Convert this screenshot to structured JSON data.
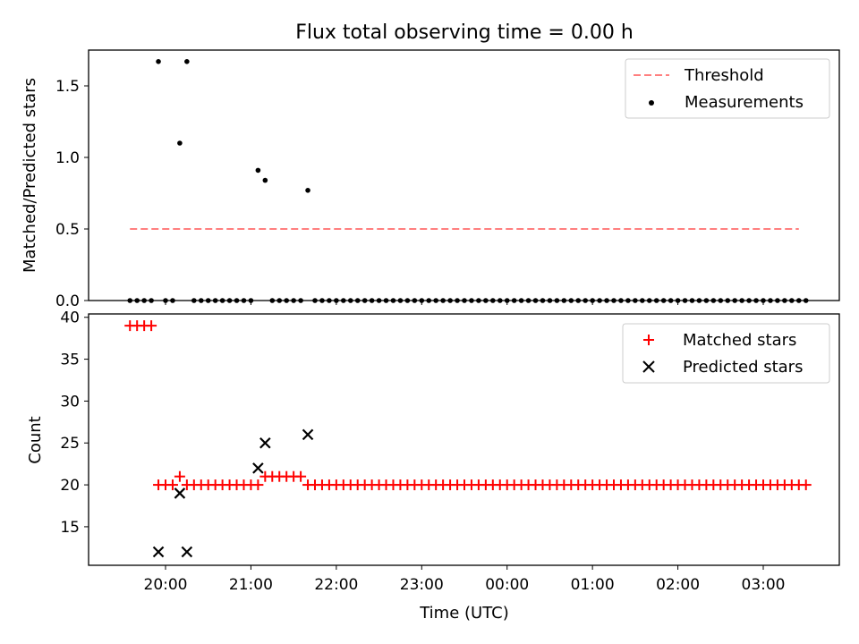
{
  "figure": {
    "title": "Flux total observing time = 0.00 h"
  },
  "chart_data": [
    {
      "type": "scatter",
      "panel": "top",
      "title": "Flux total observing time = 0.00 h",
      "xlabel": "",
      "ylabel": "Matched/Predicted stars",
      "ylim": [
        0.0,
        1.75
      ],
      "y_ticks": [
        0.0,
        0.5,
        1.0,
        1.5
      ],
      "y_tick_labels": [
        "0.0",
        "0.5",
        "1.0",
        "1.5"
      ],
      "x_ticks": [
        "20:00",
        "21:00",
        "22:00",
        "23:00",
        "00:00",
        "01:00",
        "02:00",
        "03:00"
      ],
      "x_tick_labels_visible": false,
      "legend": {
        "placement": "top-right",
        "entries": [
          "Threshold",
          "Measurements"
        ]
      },
      "threshold": {
        "name": "Threshold",
        "value": 0.5,
        "x_start": "19:35",
        "x_end": "03:25",
        "color": "#ff7f7f",
        "style": "dashed"
      },
      "series": [
        {
          "name": "Measurements",
          "color": "#000000",
          "marker": "dot",
          "points": [
            [
              "19:35",
              0.0
            ],
            [
              "19:40",
              0.0
            ],
            [
              "19:45",
              0.0
            ],
            [
              "19:50",
              0.0
            ],
            [
              "19:55",
              1.67
            ],
            [
              "20:00",
              0.0
            ],
            [
              "20:05",
              0.0
            ],
            [
              "20:10",
              1.1
            ],
            [
              "20:15",
              1.67
            ],
            [
              "20:20",
              0.0
            ],
            [
              "20:25",
              0.0
            ],
            [
              "20:30",
              0.0
            ],
            [
              "20:35",
              0.0
            ],
            [
              "20:40",
              0.0
            ],
            [
              "20:45",
              0.0
            ],
            [
              "20:50",
              0.0
            ],
            [
              "20:55",
              0.0
            ],
            [
              "21:00",
              0.0
            ],
            [
              "21:05",
              0.91
            ],
            [
              "21:10",
              0.84
            ],
            [
              "21:15",
              0.0
            ],
            [
              "21:20",
              0.0
            ],
            [
              "21:25",
              0.0
            ],
            [
              "21:30",
              0.0
            ],
            [
              "21:35",
              0.0
            ],
            [
              "21:40",
              0.77
            ],
            [
              "21:45",
              0.0
            ],
            [
              "21:50",
              0.0
            ],
            [
              "21:55",
              0.0
            ],
            [
              "22:00",
              0.0
            ],
            [
              "22:05",
              0.0
            ],
            [
              "22:10",
              0.0
            ],
            [
              "22:15",
              0.0
            ],
            [
              "22:20",
              0.0
            ],
            [
              "22:25",
              0.0
            ],
            [
              "22:30",
              0.0
            ],
            [
              "22:35",
              0.0
            ],
            [
              "22:40",
              0.0
            ],
            [
              "22:45",
              0.0
            ],
            [
              "22:50",
              0.0
            ],
            [
              "22:55",
              0.0
            ],
            [
              "23:00",
              0.0
            ],
            [
              "23:05",
              0.0
            ],
            [
              "23:10",
              0.0
            ],
            [
              "23:15",
              0.0
            ],
            [
              "23:20",
              0.0
            ],
            [
              "23:25",
              0.0
            ],
            [
              "23:30",
              0.0
            ],
            [
              "23:35",
              0.0
            ],
            [
              "23:40",
              0.0
            ],
            [
              "23:45",
              0.0
            ],
            [
              "23:50",
              0.0
            ],
            [
              "23:55",
              0.0
            ],
            [
              "00:00",
              0.0
            ],
            [
              "00:05",
              0.0
            ],
            [
              "00:10",
              0.0
            ],
            [
              "00:15",
              0.0
            ],
            [
              "00:20",
              0.0
            ],
            [
              "00:25",
              0.0
            ],
            [
              "00:30",
              0.0
            ],
            [
              "00:35",
              0.0
            ],
            [
              "00:40",
              0.0
            ],
            [
              "00:45",
              0.0
            ],
            [
              "00:50",
              0.0
            ],
            [
              "00:55",
              0.0
            ],
            [
              "01:00",
              0.0
            ],
            [
              "01:05",
              0.0
            ],
            [
              "01:10",
              0.0
            ],
            [
              "01:15",
              0.0
            ],
            [
              "01:20",
              0.0
            ],
            [
              "01:25",
              0.0
            ],
            [
              "01:30",
              0.0
            ],
            [
              "01:35",
              0.0
            ],
            [
              "01:40",
              0.0
            ],
            [
              "01:45",
              0.0
            ],
            [
              "01:50",
              0.0
            ],
            [
              "01:55",
              0.0
            ],
            [
              "02:00",
              0.0
            ],
            [
              "02:05",
              0.0
            ],
            [
              "02:10",
              0.0
            ],
            [
              "02:15",
              0.0
            ],
            [
              "02:20",
              0.0
            ],
            [
              "02:25",
              0.0
            ],
            [
              "02:30",
              0.0
            ],
            [
              "02:35",
              0.0
            ],
            [
              "02:40",
              0.0
            ],
            [
              "02:45",
              0.0
            ],
            [
              "02:50",
              0.0
            ],
            [
              "02:55",
              0.0
            ],
            [
              "03:00",
              0.0
            ],
            [
              "03:05",
              0.0
            ],
            [
              "03:10",
              0.0
            ],
            [
              "03:15",
              0.0
            ],
            [
              "03:20",
              0.0
            ],
            [
              "03:25",
              0.0
            ],
            [
              "03:30",
              0.0
            ]
          ]
        }
      ]
    },
    {
      "type": "scatter",
      "panel": "bottom",
      "title": "",
      "xlabel": "Time (UTC)",
      "ylabel": "Count",
      "ylim": [
        10.4,
        40.4
      ],
      "y_ticks": [
        15,
        20,
        25,
        30,
        35,
        40
      ],
      "y_tick_labels": [
        "15",
        "20",
        "25",
        "30",
        "35",
        "40"
      ],
      "x_ticks": [
        "20:00",
        "21:00",
        "22:00",
        "23:00",
        "00:00",
        "01:00",
        "02:00",
        "03:00"
      ],
      "x_tick_labels": [
        "20:00",
        "21:00",
        "22:00",
        "23:00",
        "00:00",
        "01:00",
        "02:00",
        "03:00"
      ],
      "legend": {
        "placement": "top-right",
        "entries": [
          "Matched stars",
          "Predicted stars"
        ]
      },
      "series": [
        {
          "name": "Matched stars",
          "color": "#ff0000",
          "marker": "plus",
          "points": [
            [
              "19:35",
              39
            ],
            [
              "19:40",
              39
            ],
            [
              "19:45",
              39
            ],
            [
              "19:50",
              39
            ],
            [
              "19:55",
              20
            ],
            [
              "20:00",
              20
            ],
            [
              "20:05",
              20
            ],
            [
              "20:10",
              21
            ],
            [
              "20:15",
              20
            ],
            [
              "20:20",
              20
            ],
            [
              "20:25",
              20
            ],
            [
              "20:30",
              20
            ],
            [
              "20:35",
              20
            ],
            [
              "20:40",
              20
            ],
            [
              "20:45",
              20
            ],
            [
              "20:50",
              20
            ],
            [
              "20:55",
              20
            ],
            [
              "21:00",
              20
            ],
            [
              "21:05",
              20
            ],
            [
              "21:10",
              21
            ],
            [
              "21:15",
              21
            ],
            [
              "21:20",
              21
            ],
            [
              "21:25",
              21
            ],
            [
              "21:30",
              21
            ],
            [
              "21:35",
              21
            ],
            [
              "21:40",
              20
            ],
            [
              "21:45",
              20
            ],
            [
              "21:50",
              20
            ],
            [
              "21:55",
              20
            ],
            [
              "22:00",
              20
            ],
            [
              "22:05",
              20
            ],
            [
              "22:10",
              20
            ],
            [
              "22:15",
              20
            ],
            [
              "22:20",
              20
            ],
            [
              "22:25",
              20
            ],
            [
              "22:30",
              20
            ],
            [
              "22:35",
              20
            ],
            [
              "22:40",
              20
            ],
            [
              "22:45",
              20
            ],
            [
              "22:50",
              20
            ],
            [
              "22:55",
              20
            ],
            [
              "23:00",
              20
            ],
            [
              "23:05",
              20
            ],
            [
              "23:10",
              20
            ],
            [
              "23:15",
              20
            ],
            [
              "23:20",
              20
            ],
            [
              "23:25",
              20
            ],
            [
              "23:30",
              20
            ],
            [
              "23:35",
              20
            ],
            [
              "23:40",
              20
            ],
            [
              "23:45",
              20
            ],
            [
              "23:50",
              20
            ],
            [
              "23:55",
              20
            ],
            [
              "00:00",
              20
            ],
            [
              "00:05",
              20
            ],
            [
              "00:10",
              20
            ],
            [
              "00:15",
              20
            ],
            [
              "00:20",
              20
            ],
            [
              "00:25",
              20
            ],
            [
              "00:30",
              20
            ],
            [
              "00:35",
              20
            ],
            [
              "00:40",
              20
            ],
            [
              "00:45",
              20
            ],
            [
              "00:50",
              20
            ],
            [
              "00:55",
              20
            ],
            [
              "01:00",
              20
            ],
            [
              "01:05",
              20
            ],
            [
              "01:10",
              20
            ],
            [
              "01:15",
              20
            ],
            [
              "01:20",
              20
            ],
            [
              "01:25",
              20
            ],
            [
              "01:30",
              20
            ],
            [
              "01:35",
              20
            ],
            [
              "01:40",
              20
            ],
            [
              "01:45",
              20
            ],
            [
              "01:50",
              20
            ],
            [
              "01:55",
              20
            ],
            [
              "02:00",
              20
            ],
            [
              "02:05",
              20
            ],
            [
              "02:10",
              20
            ],
            [
              "02:15",
              20
            ],
            [
              "02:20",
              20
            ],
            [
              "02:25",
              20
            ],
            [
              "02:30",
              20
            ],
            [
              "02:35",
              20
            ],
            [
              "02:40",
              20
            ],
            [
              "02:45",
              20
            ],
            [
              "02:50",
              20
            ],
            [
              "02:55",
              20
            ],
            [
              "03:00",
              20
            ],
            [
              "03:05",
              20
            ],
            [
              "03:10",
              20
            ],
            [
              "03:15",
              20
            ],
            [
              "03:20",
              20
            ],
            [
              "03:25",
              20
            ],
            [
              "03:30",
              20
            ]
          ]
        },
        {
          "name": "Predicted stars",
          "color": "#000000",
          "marker": "x",
          "points": [
            [
              "19:55",
              12
            ],
            [
              "20:10",
              19
            ],
            [
              "20:15",
              12
            ],
            [
              "21:05",
              22
            ],
            [
              "21:10",
              25
            ],
            [
              "21:40",
              26
            ]
          ]
        }
      ]
    }
  ]
}
